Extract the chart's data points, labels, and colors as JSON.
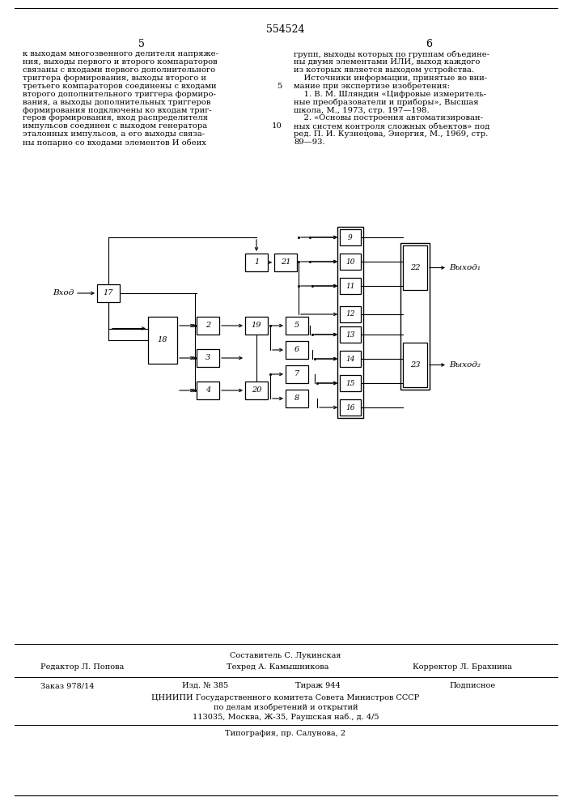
{
  "title": "554524",
  "page_left": "5",
  "page_right": "6",
  "left_text_lines": [
    "к выходам многозвенного делителя напряже-",
    "ния, выходы первого и второго компараторов",
    "связаны с входами первого дополнительного",
    "триггера формирования, выходы второго и",
    "третьего компараторов соединены с входами",
    "второго дополнительного триггера формиро-",
    "вания, а выходы дополнительных триггеров",
    "формирования подключены ко входам триг-",
    "геров формирования, вход распределителя",
    "импульсов соединен с выходом генератора",
    "эталонных импульсов, а его выходы связа-",
    "ны попарно со входами элементов И обеих"
  ],
  "right_text_lines": [
    "групп, выходы которых по группам объедине-",
    "ны двумя элементами ИЛИ, выход каждого",
    "из которых является выходом устройства.",
    "    Источники информации, принятые во вни-",
    "мание при экспертизе изобретения:",
    "    1. В. М. Шляндин «Цифровые измеритель-",
    "ные преобразователи и приборы», Высшая",
    "школа, М., 1973, стр. 197—198.",
    "    2. «Основы построения автоматизирован-",
    "ных систем контроля сложных объектов» под",
    "ред. П. И. Кузнецова, Энергия, М., 1969, стр.",
    "89—93."
  ],
  "line_numbers": [
    "5",
    "10"
  ],
  "composer": "Составитель С. Лукинская",
  "editor": "Редактор Л. Попова",
  "techred": "Техред А. Камышникова",
  "corrector": "Корректор Л. Брахнина",
  "order": "Заказ 978/14",
  "issue": "Изд. № 385",
  "circulation": "Тираж 944",
  "signed": "Подписное",
  "org1": "ЦНИИПИ Государственного комитета Совета Министров СССР",
  "org2": "по делам изобретений и открытий",
  "org3": "113035, Москва, Ж-35, Раушская наб., д. 4/5",
  "print_info": "Типография, пр. Салунова, 2",
  "bg_color": "#ffffff",
  "lc": "#000000",
  "tc": "#000000"
}
